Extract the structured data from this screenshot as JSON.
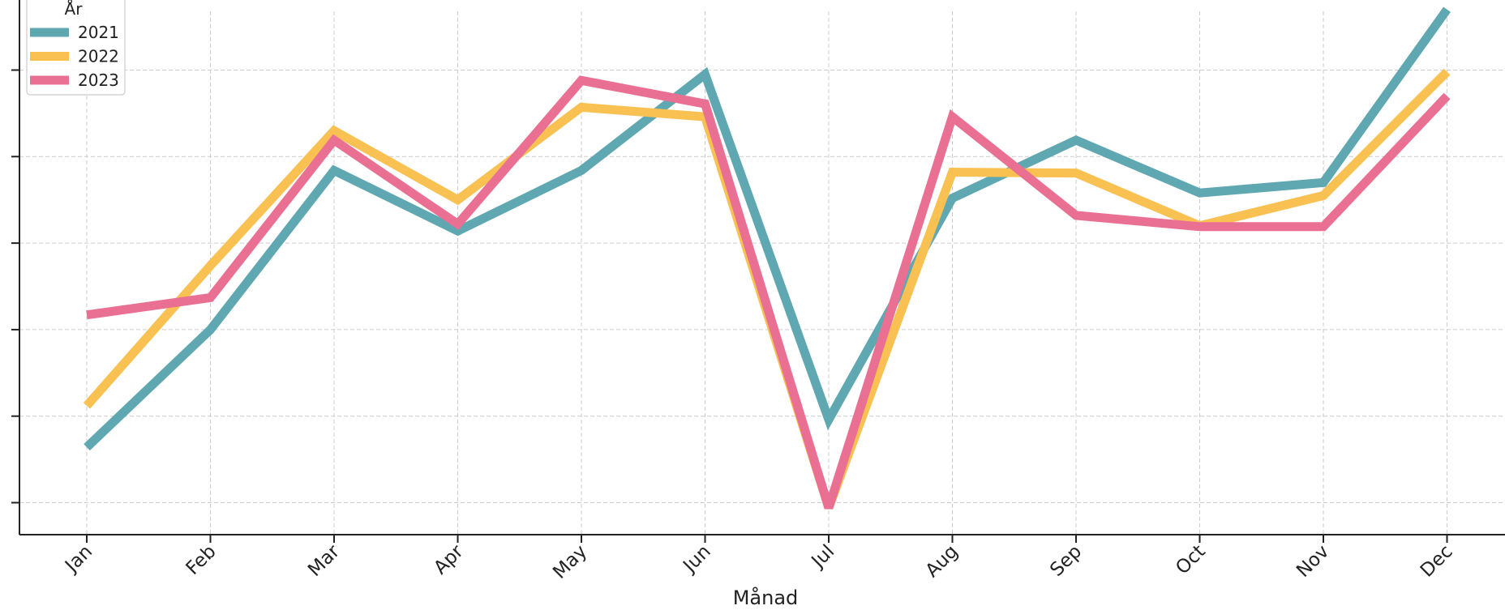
{
  "chart_data": {
    "type": "line",
    "xlabel": "Månad",
    "ylabel": "",
    "categories": [
      "Jan",
      "Feb",
      "Mar",
      "Apr",
      "May",
      "Jun",
      "Jul",
      "Aug",
      "Sep",
      "Oct",
      "Nov",
      "Dec"
    ],
    "ylim": [
      0.655,
      6.7
    ],
    "yticks": [
      1,
      2,
      3,
      4,
      5,
      6
    ],
    "grid": true,
    "legend": {
      "title": "År",
      "placement": "top-left"
    },
    "series": [
      {
        "name": "2021",
        "color": "#5fa8b1",
        "values": [
          1.64,
          3.0,
          4.84,
          4.14,
          4.84,
          5.95,
          1.96,
          4.52,
          5.19,
          4.58,
          4.7,
          6.7
        ]
      },
      {
        "name": "2022",
        "color": "#f9c052",
        "values": [
          2.12,
          3.74,
          5.3,
          4.5,
          5.57,
          5.46,
          0.94,
          4.82,
          4.81,
          4.2,
          4.55,
          5.98
        ]
      },
      {
        "name": "2023",
        "color": "#ea7093",
        "values": [
          3.17,
          3.37,
          5.19,
          4.22,
          5.88,
          5.61,
          0.94,
          5.46,
          4.32,
          4.19,
          4.19,
          5.7
        ]
      }
    ]
  }
}
